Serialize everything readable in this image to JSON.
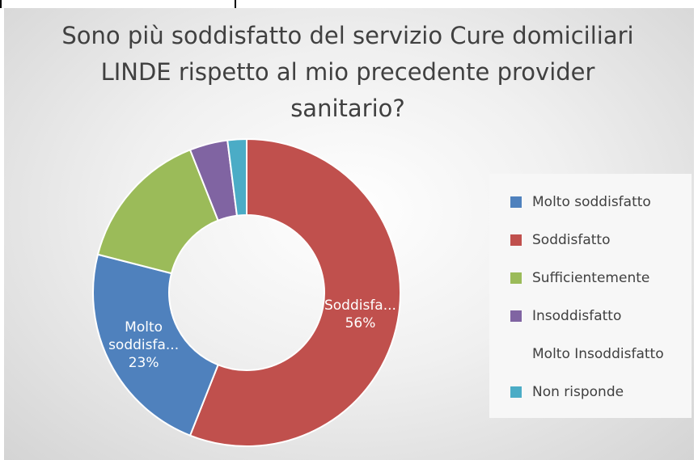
{
  "chart_data": {
    "type": "doughnut",
    "title": "Sono più soddisfatto del servizio Cure domiciliari LINDE rispetto al mio precedente provider sanitario?",
    "categories": [
      "Molto soddisfatto",
      "Soddisfatto",
      "Sufficientemente",
      "Insoddisfatto",
      "Molto Insoddisfatto",
      "Non risponde"
    ],
    "values": [
      23,
      56,
      15,
      4,
      0,
      2
    ],
    "colors": [
      "#4f81bd",
      "#c0504d",
      "#9bbb59",
      "#8064a2",
      null,
      "#4bacc6"
    ],
    "value_labels": [
      "23%",
      "56%",
      null,
      null,
      null,
      null
    ],
    "label_names": [
      "Molto soddisfa...",
      "Soddisfa...",
      null,
      null,
      null,
      null
    ],
    "legend": "right"
  }
}
